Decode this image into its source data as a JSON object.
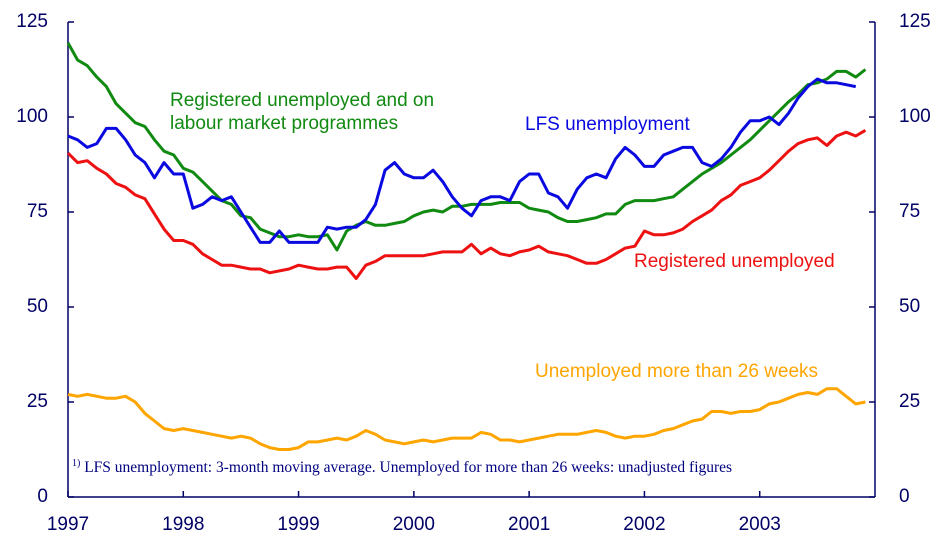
{
  "chart_data": {
    "type": "line",
    "xlim": [
      1997,
      2004
    ],
    "xticks": [
      1997,
      1998,
      1999,
      2000,
      2001,
      2002,
      2003
    ],
    "ylim": [
      0,
      125
    ],
    "yticks": [
      0,
      25,
      50,
      75,
      100,
      125
    ],
    "y2lim": [
      0,
      125
    ],
    "y2ticks": [
      0,
      25,
      50,
      75,
      100,
      125
    ],
    "footnote_marker": "1)",
    "footnote": "LFS unemployment: 3-month moving average. Unemployed for more than 26 weeks: unadjusted figures",
    "x": [
      1997,
      1997.083,
      1997.167,
      1997.25,
      1997.333,
      1997.417,
      1997.5,
      1997.583,
      1997.667,
      1997.75,
      1997.833,
      1997.917,
      1998,
      1998.083,
      1998.167,
      1998.25,
      1998.333,
      1998.417,
      1998.5,
      1998.583,
      1998.667,
      1998.75,
      1998.833,
      1998.917,
      1999,
      1999.083,
      1999.167,
      1999.25,
      1999.333,
      1999.417,
      1999.5,
      1999.583,
      1999.667,
      1999.75,
      1999.833,
      1999.917,
      2000,
      2000.083,
      2000.167,
      2000.25,
      2000.333,
      2000.417,
      2000.5,
      2000.583,
      2000.667,
      2000.75,
      2000.833,
      2000.917,
      2001,
      2001.083,
      2001.167,
      2001.25,
      2001.333,
      2001.417,
      2001.5,
      2001.583,
      2001.667,
      2001.75,
      2001.833,
      2001.917,
      2002,
      2002.083,
      2002.167,
      2002.25,
      2002.333,
      2002.417,
      2002.5,
      2002.583,
      2002.667,
      2002.75,
      2002.833,
      2002.917,
      2003,
      2003.083,
      2003.167,
      2003.25,
      2003.333,
      2003.417,
      2003.5,
      2003.583,
      2003.667,
      2003.75,
      2003.833,
      2003.917
    ],
    "series": [
      {
        "name": "Registered unemployed and on labour market programmes",
        "color": "#118a11",
        "values": [
          119.5,
          115,
          113.5,
          110.5,
          108,
          103.5,
          101,
          98.5,
          97.5,
          94,
          91,
          90,
          86.5,
          85.5,
          83,
          80.5,
          78,
          77,
          74,
          73.5,
          70.5,
          69.5,
          68.5,
          68.5,
          69,
          68.5,
          68.5,
          69,
          65,
          70,
          71.5,
          72.5,
          71.5,
          71.5,
          72,
          72.5,
          74,
          75,
          75.5,
          75,
          76.5,
          76.5,
          77,
          77,
          77,
          77.5,
          77.5,
          77.5,
          76,
          75.5,
          75,
          73.5,
          72.5,
          72.5,
          73,
          73.5,
          74.5,
          74.5,
          77,
          78,
          78,
          78,
          78.5,
          79,
          81,
          83,
          85,
          86.5,
          88,
          90,
          92,
          94,
          96.5,
          99,
          101.5,
          104,
          106,
          108.5,
          109,
          110,
          112,
          112,
          110.5,
          112.5
        ]
      },
      {
        "name": "LFS unemployment",
        "color": "#0a0ae0",
        "values": [
          95,
          94,
          92,
          93,
          97,
          97,
          94,
          90,
          88,
          84,
          88,
          85,
          85,
          76,
          77,
          79,
          78,
          79,
          75,
          71,
          67,
          67,
          70,
          67,
          67,
          67,
          67,
          71,
          70.5,
          71,
          71,
          73,
          77,
          86,
          88,
          85,
          84,
          84,
          86,
          83,
          79,
          76,
          74,
          78,
          79,
          79,
          78,
          83,
          85,
          85,
          80,
          79,
          76,
          81,
          84,
          85,
          84,
          89,
          92,
          90,
          87,
          87,
          90,
          91,
          92,
          92,
          88,
          87,
          89,
          92,
          96,
          99,
          99,
          100,
          98,
          101,
          105,
          108,
          110,
          109,
          109,
          108.5,
          108,
          null
        ]
      },
      {
        "name": "Registered unemployed",
        "color": "#ee1111",
        "values": [
          90.5,
          88,
          88.5,
          86.5,
          85,
          82.5,
          81.5,
          79.5,
          78.5,
          74.5,
          70.5,
          67.5,
          67.5,
          66.5,
          64,
          62.5,
          61,
          61,
          60.5,
          60,
          60,
          59,
          59.5,
          60,
          61,
          60.5,
          60,
          60,
          60.5,
          60.5,
          57.5,
          61,
          62,
          63.5,
          63.5,
          63.5,
          63.5,
          63.5,
          64,
          64.5,
          64.5,
          64.5,
          66.5,
          64,
          65.5,
          64,
          63.5,
          64.5,
          65,
          66,
          64.5,
          64,
          63.5,
          62.5,
          61.5,
          61.5,
          62.5,
          64,
          65.5,
          66,
          70,
          69,
          69,
          69.5,
          70.5,
          72.5,
          74,
          75.5,
          78,
          79.5,
          82,
          83,
          84,
          86,
          88.5,
          91,
          93,
          94,
          94.5,
          92.5,
          95,
          96,
          95,
          96.5
        ]
      },
      {
        "name": "Unemployed more than 26 weeks",
        "color": "#ffa500",
        "values": [
          27,
          26.5,
          27,
          26.5,
          26,
          26,
          26.5,
          25,
          22,
          20,
          18,
          17.5,
          18,
          17.5,
          17,
          16.5,
          16,
          15.5,
          16,
          15.5,
          14,
          13,
          12.5,
          12.5,
          13,
          14.5,
          14.5,
          15,
          15.5,
          15,
          16,
          17.5,
          16.5,
          15,
          14.5,
          14,
          14.5,
          15,
          14.5,
          15,
          15.5,
          15.5,
          15.5,
          17,
          16.5,
          15,
          15,
          14.5,
          15,
          15.5,
          16,
          16.5,
          16.5,
          16.5,
          17,
          17.5,
          17,
          16,
          15.5,
          16,
          16,
          16.5,
          17.5,
          18,
          19,
          20,
          20.5,
          22.5,
          22.5,
          22,
          22.5,
          22.5,
          23,
          24.5,
          25,
          26,
          27,
          27.5,
          27,
          28.5,
          28.5,
          26.5,
          24.5,
          25
        ]
      }
    ]
  }
}
